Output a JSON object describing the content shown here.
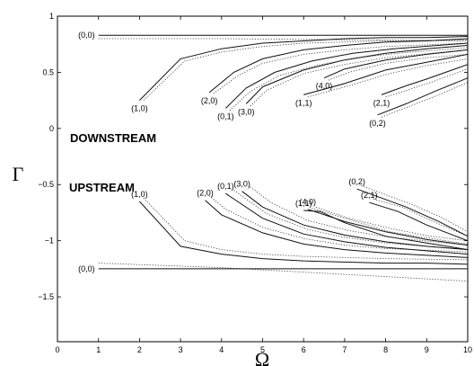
{
  "chart_data": {
    "type": "line",
    "xlabel": "Ω",
    "ylabel": "Γ",
    "xlim": [
      0,
      10
    ],
    "ylim": [
      -1.9,
      1
    ],
    "x_ticks": [
      "0",
      "1",
      "2",
      "3",
      "4",
      "5",
      "6",
      "7",
      "8",
      "9",
      "10"
    ],
    "y_ticks": [
      "1",
      "0.5",
      "0",
      "−0.5",
      "−1",
      "−1.5"
    ],
    "y_tick_values": [
      1,
      0.5,
      0,
      -0.5,
      -1,
      -1.5
    ],
    "grid": false,
    "annotations": [
      "DOWNSTREAM",
      "UPSTREAM"
    ],
    "series": [
      {
        "label": "(0,0)",
        "group": "downstream",
        "solid": [
          [
            1,
            0.83
          ],
          [
            10,
            0.83
          ]
        ],
        "dotted": [
          [
            1,
            0.8
          ],
          [
            4,
            0.8
          ],
          [
            7,
            0.79
          ],
          [
            10,
            0.78
          ]
        ]
      },
      {
        "label": "(1,0)",
        "group": "downstream",
        "solid": [
          [
            2,
            0.25
          ],
          [
            3,
            0.62
          ],
          [
            4,
            0.71
          ],
          [
            5,
            0.76
          ],
          [
            6,
            0.78
          ],
          [
            7,
            0.8
          ],
          [
            8,
            0.81
          ],
          [
            9,
            0.81
          ],
          [
            10,
            0.82
          ]
        ],
        "dotted": [
          [
            2.1,
            0.25
          ],
          [
            3.1,
            0.6
          ],
          [
            4,
            0.68
          ],
          [
            5,
            0.73
          ],
          [
            6,
            0.76
          ],
          [
            8,
            0.78
          ],
          [
            10,
            0.79
          ]
        ]
      },
      {
        "label": "(2,0)",
        "group": "downstream",
        "solid": [
          [
            3.7,
            0.32
          ],
          [
            4.3,
            0.5
          ],
          [
            5,
            0.62
          ],
          [
            6,
            0.7
          ],
          [
            7,
            0.74
          ],
          [
            8,
            0.77
          ],
          [
            9,
            0.78
          ],
          [
            10,
            0.8
          ]
        ],
        "dotted": [
          [
            3.8,
            0.31
          ],
          [
            4.4,
            0.47
          ],
          [
            5,
            0.58
          ],
          [
            6,
            0.66
          ],
          [
            7,
            0.7
          ],
          [
            8,
            0.73
          ],
          [
            10,
            0.76
          ]
        ]
      },
      {
        "label": "(0,1)",
        "group": "downstream",
        "solid": [
          [
            4.1,
            0.18
          ],
          [
            4.6,
            0.36
          ],
          [
            5.3,
            0.5
          ],
          [
            6.2,
            0.6
          ],
          [
            7.2,
            0.67
          ],
          [
            8.2,
            0.71
          ],
          [
            10,
            0.76
          ]
        ],
        "dotted": [
          [
            4.2,
            0.16
          ],
          [
            4.7,
            0.33
          ],
          [
            5.4,
            0.47
          ],
          [
            6.3,
            0.56
          ],
          [
            7.3,
            0.63
          ],
          [
            8.3,
            0.67
          ],
          [
            10,
            0.72
          ]
        ]
      },
      {
        "label": "(3,0)",
        "group": "downstream",
        "solid": [
          [
            4.6,
            0.22
          ],
          [
            5,
            0.37
          ],
          [
            6,
            0.52
          ],
          [
            7,
            0.61
          ],
          [
            8,
            0.67
          ],
          [
            9,
            0.71
          ],
          [
            10,
            0.74
          ]
        ],
        "dotted": [
          [
            4.7,
            0.2
          ],
          [
            5.1,
            0.34
          ],
          [
            6,
            0.49
          ],
          [
            7,
            0.57
          ],
          [
            8,
            0.63
          ],
          [
            10,
            0.7
          ]
        ]
      },
      {
        "label": "(4,0)",
        "group": "downstream",
        "solid": [
          [
            6.5,
            0.45
          ],
          [
            7,
            0.53
          ],
          [
            8,
            0.61
          ],
          [
            9,
            0.66
          ],
          [
            10,
            0.7
          ]
        ],
        "dotted": [
          [
            6.6,
            0.43
          ],
          [
            7.1,
            0.5
          ],
          [
            8,
            0.58
          ],
          [
            9,
            0.63
          ],
          [
            10,
            0.66
          ]
        ]
      },
      {
        "label": "(1,1)",
        "group": "downstream",
        "solid": [
          [
            6,
            0.3
          ],
          [
            7,
            0.4
          ],
          [
            8,
            0.52
          ],
          [
            9,
            0.59
          ],
          [
            10,
            0.66
          ]
        ],
        "dotted": [
          [
            6.1,
            0.28
          ],
          [
            7.1,
            0.38
          ],
          [
            8.1,
            0.49
          ],
          [
            9,
            0.56
          ],
          [
            10,
            0.62
          ]
        ]
      },
      {
        "label": "(2,1)",
        "group": "downstream",
        "solid": [
          [
            7.9,
            0.3
          ],
          [
            8.5,
            0.38
          ],
          [
            9,
            0.44
          ],
          [
            10,
            0.57
          ]
        ],
        "dotted": [
          [
            8,
            0.28
          ],
          [
            8.6,
            0.35
          ],
          [
            9.1,
            0.41
          ],
          [
            10,
            0.53
          ]
        ]
      },
      {
        "label": "(0,2)",
        "group": "downstream",
        "solid": [
          [
            7.8,
            0.12
          ],
          [
            8.5,
            0.22
          ],
          [
            9.2,
            0.33
          ],
          [
            10,
            0.45
          ]
        ],
        "dotted": [
          [
            7.9,
            0.1
          ],
          [
            8.6,
            0.2
          ],
          [
            9.3,
            0.3
          ],
          [
            10,
            0.41
          ]
        ]
      },
      {
        "label": "(1,0)",
        "group": "upstream",
        "solid": [
          [
            2,
            -0.65
          ],
          [
            3,
            -1.05
          ],
          [
            4,
            -1.12
          ],
          [
            5,
            -1.16
          ],
          [
            6,
            -1.18
          ],
          [
            7,
            -1.19
          ],
          [
            8,
            -1.2
          ],
          [
            9,
            -1.2
          ],
          [
            10,
            -1.21
          ]
        ],
        "dotted": [
          [
            2.1,
            -0.62
          ],
          [
            3.1,
            -1.0
          ],
          [
            4,
            -1.08
          ],
          [
            5,
            -1.12
          ],
          [
            6,
            -1.14
          ],
          [
            8,
            -1.16
          ],
          [
            10,
            -1.17
          ]
        ]
      },
      {
        "label": "(2,0)",
        "group": "upstream",
        "solid": [
          [
            3.6,
            -0.64
          ],
          [
            4,
            -0.77
          ],
          [
            5,
            -0.93
          ],
          [
            6,
            -1.03
          ],
          [
            7,
            -1.08
          ],
          [
            8,
            -1.11
          ],
          [
            9,
            -1.13
          ],
          [
            10,
            -1.15
          ]
        ],
        "dotted": [
          [
            3.7,
            -0.6
          ],
          [
            4.1,
            -0.72
          ],
          [
            5,
            -0.88
          ],
          [
            6,
            -0.98
          ],
          [
            7,
            -1.04
          ],
          [
            8,
            -1.07
          ],
          [
            10,
            -1.1
          ]
        ]
      },
      {
        "label": "(0,1)",
        "group": "upstream",
        "solid": [
          [
            4.1,
            -0.58
          ],
          [
            5,
            -0.8
          ],
          [
            6,
            -0.94
          ],
          [
            7,
            -1.01
          ],
          [
            8,
            -1.06
          ],
          [
            9,
            -1.09
          ],
          [
            10,
            -1.12
          ]
        ],
        "dotted": [
          [
            4.3,
            -0.55
          ],
          [
            5.1,
            -0.76
          ],
          [
            6.1,
            -0.9
          ],
          [
            7,
            -0.97
          ],
          [
            8,
            -1.02
          ],
          [
            10,
            -1.08
          ]
        ]
      },
      {
        "label": "(3,0)",
        "group": "upstream",
        "solid": [
          [
            4.5,
            -0.56
          ],
          [
            5,
            -0.7
          ],
          [
            6,
            -0.86
          ],
          [
            7,
            -0.95
          ],
          [
            8,
            -1.01
          ],
          [
            9,
            -1.05
          ],
          [
            10,
            -1.08
          ]
        ],
        "dotted": [
          [
            4.7,
            -0.52
          ],
          [
            5.2,
            -0.66
          ],
          [
            6.1,
            -0.82
          ],
          [
            7.1,
            -0.91
          ],
          [
            8.1,
            -0.97
          ],
          [
            10,
            -1.04
          ]
        ]
      },
      {
        "label": "(4,0)",
        "group": "upstream",
        "solid": [
          [
            6.1,
            -0.72
          ],
          [
            7,
            -0.83
          ],
          [
            8,
            -0.92
          ],
          [
            9,
            -0.99
          ],
          [
            10,
            -1.04
          ]
        ],
        "dotted": [
          [
            6.3,
            -0.7
          ],
          [
            7.1,
            -0.8
          ],
          [
            8.1,
            -0.89
          ],
          [
            9.1,
            -0.96
          ],
          [
            10,
            -1.0
          ]
        ]
      },
      {
        "label": "(1,1)",
        "group": "upstream",
        "solid": [
          [
            6,
            -0.73
          ],
          [
            6.4,
            -0.74
          ],
          [
            7,
            -0.84
          ],
          [
            8,
            -0.96
          ],
          [
            9,
            -1.02
          ],
          [
            10,
            -1.08
          ]
        ],
        "dotted": [
          [
            6.2,
            -0.71
          ],
          [
            7.1,
            -0.81
          ],
          [
            8.1,
            -0.92
          ],
          [
            9.1,
            -0.98
          ],
          [
            10,
            -1.03
          ]
        ]
      },
      {
        "label": "(2,1)",
        "group": "upstream",
        "solid": [
          [
            7.6,
            -0.66
          ],
          [
            8.3,
            -0.74
          ],
          [
            9,
            -0.86
          ],
          [
            10,
            -1.0
          ]
        ],
        "dotted": [
          [
            7.7,
            -0.63
          ],
          [
            8.4,
            -0.7
          ],
          [
            9.1,
            -0.82
          ],
          [
            10,
            -0.96
          ]
        ]
      },
      {
        "label": "(0,2)",
        "group": "upstream",
        "solid": [
          [
            7.3,
            -0.54
          ],
          [
            8.5,
            -0.7
          ],
          [
            9.3,
            -0.83
          ],
          [
            10,
            -0.96
          ]
        ],
        "dotted": [
          [
            7.4,
            -0.51
          ],
          [
            8.6,
            -0.67
          ],
          [
            9.4,
            -0.8
          ],
          [
            10,
            -0.92
          ]
        ]
      },
      {
        "label": "(0,0)",
        "group": "upstream",
        "solid": [
          [
            1,
            -1.25
          ],
          [
            10,
            -1.25
          ]
        ],
        "dotted": [
          [
            1,
            -1.2
          ],
          [
            4,
            -1.24
          ],
          [
            7,
            -1.3
          ],
          [
            10,
            -1.36
          ]
        ]
      }
    ]
  }
}
